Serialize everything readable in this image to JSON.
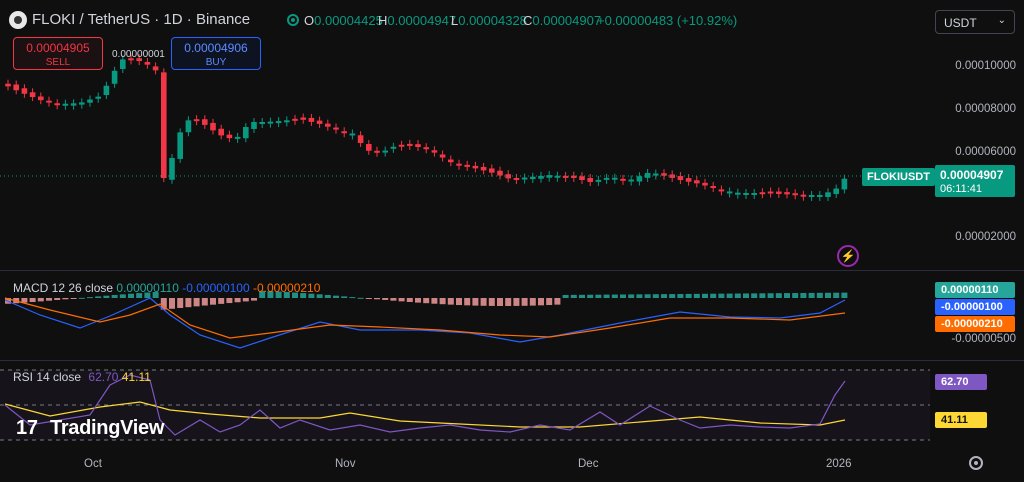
{
  "header": {
    "title": "FLOKI / TetherUS · 1D · Binance",
    "ohlc": [
      {
        "k": "O",
        "v": "0.00004425"
      },
      {
        "k": "H",
        "v": "0.00004947"
      },
      {
        "k": "L",
        "v": "0.00004328"
      },
      {
        "k": "C",
        "v": "0.00004907"
      }
    ],
    "change": "+0.00000483 (+10.92%)",
    "currency_select": "USDT"
  },
  "trade": {
    "sell_price": "0.00004905",
    "sell_label": "SELL",
    "buy_price": "0.00004906",
    "buy_label": "BUY",
    "high_marker": "0.00000001"
  },
  "price_axis": {
    "ticks": [
      "0.00010000",
      "0.00008000",
      "0.00006000",
      "0.00002000"
    ],
    "symbol_label": "FLOKIUSDT",
    "last_price": "0.00004907",
    "countdown": "06:11:41"
  },
  "macd": {
    "legend_label": "MACD 12 26 close",
    "values": [
      "0.00000110",
      "-0.00000100",
      "-0.00000210"
    ],
    "badges": [
      "0.00000110",
      "-0.00000100",
      "-0.00000210"
    ],
    "axis_tick": "-0.00000500"
  },
  "rsi": {
    "legend_label": "RSI 14 close",
    "values": [
      "62.70",
      "41.11"
    ],
    "badges": [
      "62.70",
      "41.11"
    ]
  },
  "branding": {
    "name": "TradingView",
    "mark": "17"
  },
  "time_axis": [
    "Oct",
    "Nov",
    "Dec",
    "2026"
  ],
  "colors": {
    "up": "#089981",
    "down": "#f23645",
    "macd": "#2962ff",
    "signal": "#ff6d00",
    "rsi": "#7e57c2",
    "rsi_ma": "#fdd835"
  }
}
